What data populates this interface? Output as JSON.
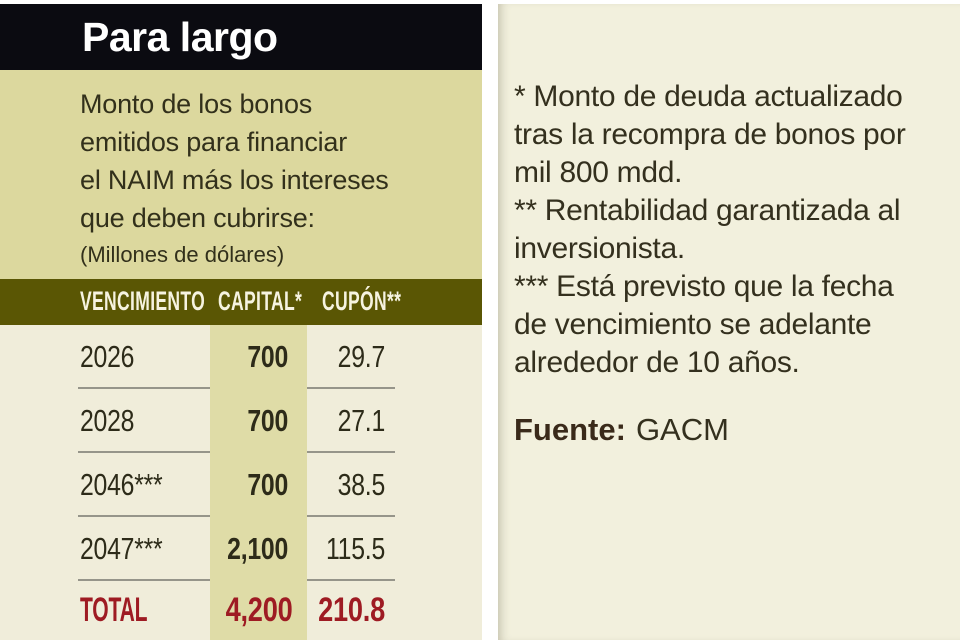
{
  "colors": {
    "page_bg": "#ffffff",
    "header_bg": "#0b0b11",
    "title_text": "#ffffff",
    "intro_bg": "#dcd89e",
    "intro_text": "#32301b",
    "table_header_bg": "#5a5604",
    "table_header_text": "#f6f3e0",
    "table_body_bg": "#f0edda",
    "capital_band": "#dfdca7",
    "row_text": "#2d2b19",
    "separator": "#96958a",
    "total_red": "#9e1b23",
    "right_panel_bg": "#f2f0dd",
    "right_text": "#34301e"
  },
  "left_panel": {
    "title": "Para largo",
    "description_lines": [
      "Monto de los bonos",
      "emitidos para financiar",
      "el NAIM más los intereses",
      "que deben cubrirse:"
    ],
    "unit_note": "(Millones de dólares)",
    "table": {
      "columns": [
        "VENCIMIENTO",
        "CAPITAL*",
        "CUPÓN**"
      ],
      "rows": [
        {
          "vencimiento": "2026",
          "capital": "700",
          "cupon": "29.7"
        },
        {
          "vencimiento": "2028",
          "capital": "700",
          "cupon": "27.1"
        },
        {
          "vencimiento": "2046***",
          "capital": "700",
          "cupon": "38.5"
        },
        {
          "vencimiento": "2047***",
          "capital": "2,100",
          "cupon": "115.5"
        }
      ],
      "total": {
        "label": "TOTAL",
        "capital": "4,200",
        "cupon": "210.8"
      }
    }
  },
  "right_panel": {
    "footnotes": [
      [
        "* Monto de deuda actualizado",
        "tras la recompra de bonos por",
        "mil 800 mdd."
      ],
      [
        "** Rentabilidad garantizada al",
        "inversionista."
      ],
      [
        "*** Está previsto que la fecha",
        "de vencimiento se adelante",
        "alrededor de 10 años."
      ]
    ],
    "source_label": "Fuente:",
    "source_value": "GACM"
  },
  "chart_data": {
    "type": "table",
    "title": "Para largo",
    "subtitle": "Monto de los bonos emitidos para financiar el NAIM más los intereses que deben cubrirse:",
    "units": "Millones de dólares",
    "columns": [
      "VENCIMIENTO",
      "CAPITAL*",
      "CUPÓN**"
    ],
    "rows": [
      {
        "vencimiento": "2026",
        "capital": 700,
        "cupon": 29.7
      },
      {
        "vencimiento": "2028",
        "capital": 700,
        "cupon": 27.1
      },
      {
        "vencimiento": "2046***",
        "capital": 700,
        "cupon": 38.5
      },
      {
        "vencimiento": "2047***",
        "capital": 2100,
        "cupon": 115.5
      }
    ],
    "total": {
      "vencimiento": "TOTAL",
      "capital": 4200,
      "cupon": 210.8
    },
    "footnotes": [
      "* Monto de deuda actualizado tras la recompra de bonos por mil 800 mdd.",
      "** Rentabilidad garantizada al inversionista.",
      "*** Está previsto que la fecha de vencimiento se adelante alrededor de 10 años."
    ],
    "source": "GACM"
  }
}
